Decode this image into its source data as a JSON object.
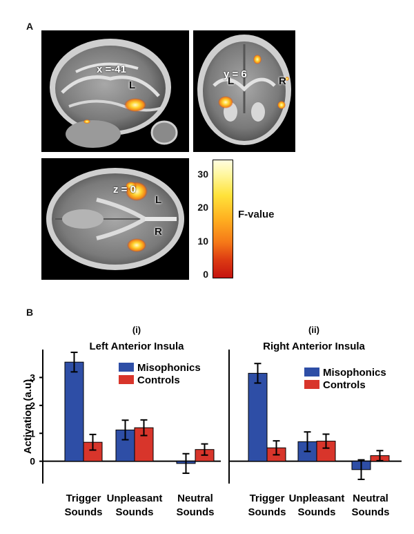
{
  "panel_a": {
    "letter": "A",
    "sagittal": {
      "slice": "x =-41",
      "hemi": "L"
    },
    "coronal": {
      "slice": "y = 6",
      "hemi_left": "L",
      "hemi_right": "R"
    },
    "axial": {
      "slice": "z = 0",
      "hemi_left": "L",
      "hemi_right": "R"
    },
    "colorbar": {
      "label": "F-value",
      "ticks": [
        "30",
        "20",
        "10",
        "0"
      ]
    }
  },
  "panel_b": {
    "letter": "B"
  },
  "chart_data": [
    {
      "type": "bar",
      "panel": "(i)",
      "title": "Left Anterior Insula",
      "ylabel": "Activation (a.u)",
      "ylim": [
        -0.8,
        4.0
      ],
      "yticks": [
        "0",
        "1",
        "2",
        "3"
      ],
      "categories": [
        "Trigger Sounds",
        "Unpleasant Sounds",
        "Neutral Sounds"
      ],
      "category_lines": [
        [
          "Trigger",
          "Sounds"
        ],
        [
          "Unpleasant",
          "Sounds"
        ],
        [
          "Neutral",
          "Sounds"
        ]
      ],
      "series": [
        {
          "name": "Misophonics",
          "color": "#2e4ea6",
          "values": [
            3.55,
            1.12,
            -0.08
          ],
          "errors": [
            0.35,
            0.35,
            0.35
          ]
        },
        {
          "name": "Controls",
          "color": "#d8352b",
          "values": [
            0.68,
            1.2,
            0.42
          ],
          "errors": [
            0.28,
            0.28,
            0.2
          ]
        }
      ]
    },
    {
      "type": "bar",
      "panel": "(ii)",
      "title": "Right Anterior Insula",
      "ylabel": "",
      "ylim": [
        -0.8,
        4.0
      ],
      "categories": [
        "Trigger Sounds",
        "Unpleasant Sounds",
        "Neutral Sounds"
      ],
      "category_lines": [
        [
          "Trigger",
          "Sounds"
        ],
        [
          "Unpleasant",
          "Sounds"
        ],
        [
          "Neutral",
          "Sounds"
        ]
      ],
      "series": [
        {
          "name": "Misophonics",
          "color": "#2e4ea6",
          "values": [
            3.15,
            0.7,
            -0.3
          ],
          "errors": [
            0.35,
            0.35,
            0.35
          ]
        },
        {
          "name": "Controls",
          "color": "#d8352b",
          "values": [
            0.48,
            0.72,
            0.2
          ],
          "errors": [
            0.25,
            0.25,
            0.18
          ]
        }
      ]
    }
  ]
}
